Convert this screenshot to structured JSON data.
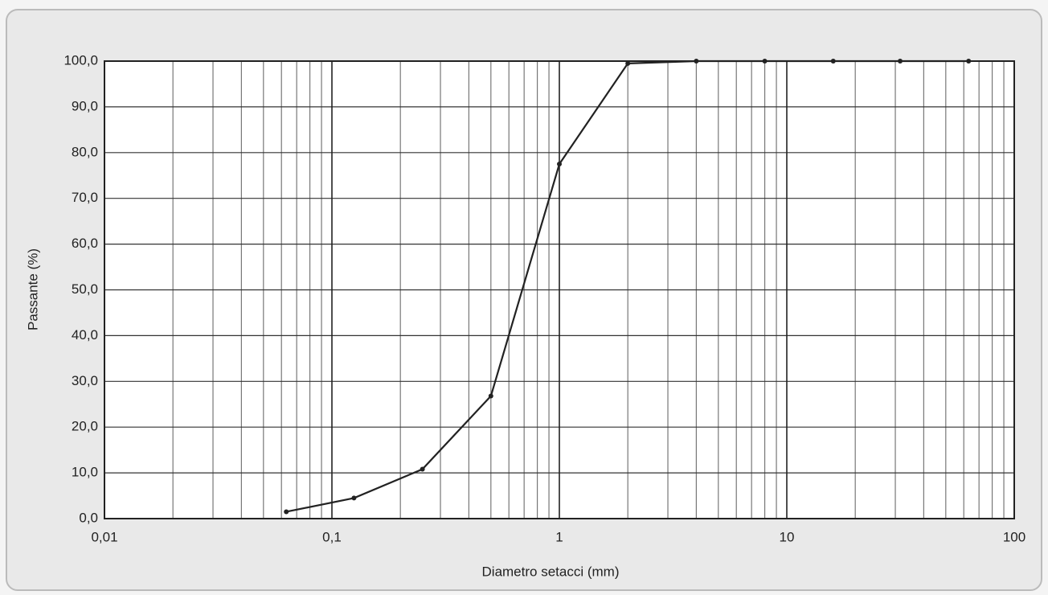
{
  "chart_data": {
    "type": "line",
    "xlabel": "Diametro setacci (mm)",
    "ylabel": "Passante (%)",
    "x": [
      0.063,
      0.125,
      0.25,
      0.5,
      1,
      2,
      4,
      8,
      16,
      31.5,
      63
    ],
    "series": [
      {
        "color": "#222222",
        "values": [
          1.5,
          4.5,
          10.8,
          26.8,
          77.5,
          99.5,
          100,
          100,
          100,
          100,
          100
        ]
      }
    ],
    "xscale": "log",
    "xlim": [
      0.01,
      100
    ],
    "xticks": [
      {
        "value": 0.01,
        "label": "0,01"
      },
      {
        "value": 0.1,
        "label": "0,1"
      },
      1,
      10,
      100
    ],
    "xgrid_minor": [
      0.02,
      0.03,
      0.04,
      0.05,
      0.06,
      0.07,
      0.08,
      0.09,
      0.2,
      0.3,
      0.4,
      0.5,
      0.6,
      0.7,
      0.8,
      0.9,
      2,
      3,
      4,
      5,
      6,
      7,
      8,
      9,
      20,
      30,
      40,
      50,
      60,
      70,
      80,
      90
    ],
    "ylim": [
      0,
      100
    ],
    "yticks": [
      {
        "value": 0,
        "label": "0,0"
      },
      {
        "value": 10,
        "label": "10,0"
      },
      {
        "value": 20,
        "label": "20,0"
      },
      {
        "value": 30,
        "label": "30,0"
      },
      {
        "value": 40,
        "label": "40,0"
      },
      {
        "value": 50,
        "label": "50,0"
      },
      {
        "value": 60,
        "label": "60,0"
      },
      {
        "value": 70,
        "label": "70,0"
      },
      {
        "value": 80,
        "label": "80,0"
      },
      {
        "value": 90,
        "label": "90,0"
      },
      {
        "value": 100,
        "label": "100,0"
      }
    ],
    "grid": true
  }
}
